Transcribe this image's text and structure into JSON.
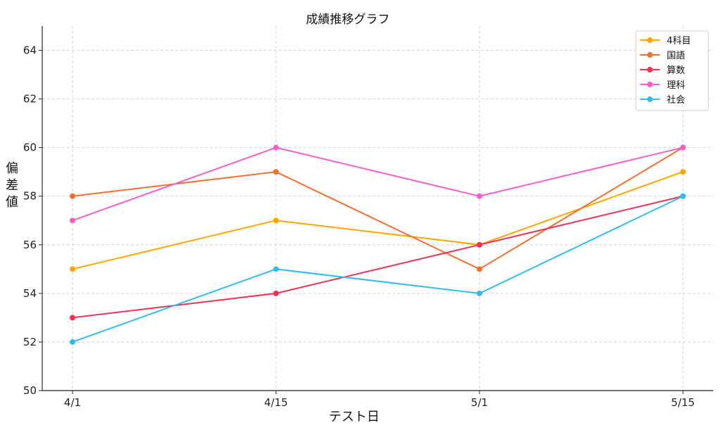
{
  "chart_data": {
    "type": "line",
    "title": "成績推移グラフ",
    "xlabel": "テスト日",
    "ylabel": "偏差値",
    "categories": [
      "4/1",
      "4/15",
      "5/1",
      "5/15"
    ],
    "ylim": [
      50,
      65
    ],
    "yticks": [
      50,
      52,
      54,
      56,
      58,
      60,
      62,
      64
    ],
    "grid": true,
    "legend_position": "top-right",
    "series": [
      {
        "name": "4科目",
        "color": "#FFA500",
        "values": [
          55,
          57,
          56,
          59
        ]
      },
      {
        "name": "国語",
        "color": "#F07030",
        "values": [
          58,
          59,
          55,
          60
        ]
      },
      {
        "name": "算数",
        "color": "#EE3355",
        "values": [
          53,
          54,
          56,
          58
        ]
      },
      {
        "name": "理科",
        "color": "#F25FC6",
        "values": [
          57,
          60,
          58,
          60
        ]
      },
      {
        "name": "社会",
        "color": "#33BBEE",
        "values": [
          52,
          55,
          54,
          58
        ]
      }
    ]
  }
}
